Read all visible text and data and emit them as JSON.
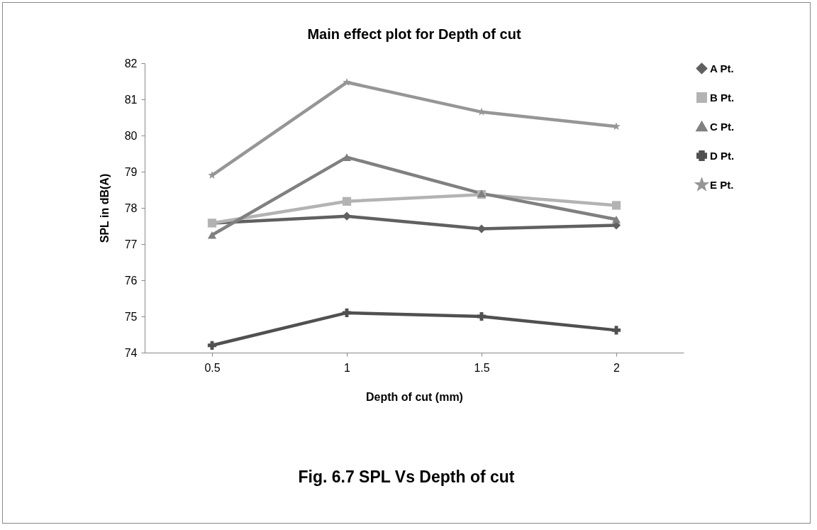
{
  "chart_data": {
    "type": "line",
    "title": "Main effect plot for Depth of cut",
    "xlabel": "Depth of cut (mm)",
    "ylabel": "SPL in dB(A)",
    "categories": [
      "0.5",
      "1",
      "1.5",
      "2"
    ],
    "series": [
      {
        "name": "A Pt.",
        "color": "#606060",
        "marker": "diamond",
        "values": [
          77.58,
          77.77,
          77.42,
          77.52
        ]
      },
      {
        "name": "B Pt.",
        "color": "#b3b3b3",
        "marker": "square",
        "values": [
          77.58,
          78.18,
          78.37,
          78.07
        ]
      },
      {
        "name": "C Pt.",
        "color": "#808080",
        "marker": "triangle",
        "values": [
          77.25,
          79.4,
          78.4,
          77.68
        ]
      },
      {
        "name": "D Pt.",
        "color": "#505050",
        "marker": "cross",
        "values": [
          74.2,
          75.1,
          75.0,
          74.62
        ]
      },
      {
        "name": "E Pt.",
        "color": "#969696",
        "marker": "star",
        "values": [
          78.9,
          81.47,
          80.65,
          80.25
        ]
      }
    ],
    "ylim": [
      74,
      82
    ],
    "yticks": [
      74,
      75,
      76,
      77,
      78,
      79,
      80,
      81,
      82
    ],
    "grid": false,
    "legend": "right",
    "annotations": [
      "Fig. 6.7 SPL Vs Depth of cut"
    ]
  }
}
